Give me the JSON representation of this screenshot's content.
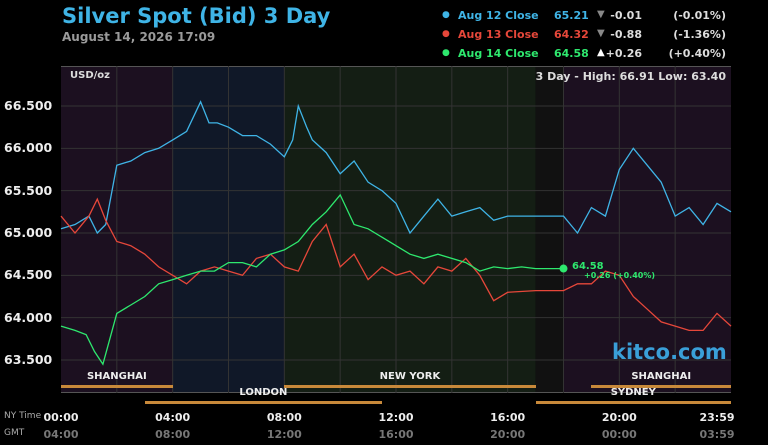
{
  "header": {
    "title": "Silver Spot (Bid) 3 Day",
    "timestamp": "August 14, 2026 17:09"
  },
  "legend": [
    {
      "label": "Aug 12 Close",
      "price": "65.21",
      "arrow": "▼",
      "change": "-0.01",
      "percent": "(-0.01%)",
      "color": "#3fb4e6",
      "arrow_color": "#888888"
    },
    {
      "label": "Aug 13 Close",
      "price": "64.32",
      "arrow": "▼",
      "change": "-0.88",
      "percent": "(-1.36%)",
      "color": "#e6473a",
      "arrow_color": "#888888"
    },
    {
      "label": "Aug 14 Close",
      "price": "64.58",
      "arrow": "▲",
      "change": "+0.26",
      "percent": "(+0.40%)",
      "color": "#2ee86e",
      "arrow_color": "#ffffff"
    }
  ],
  "plot": {
    "unit_label": "USD/oz",
    "high_low": "3 Day - High: 66.91   Low: 63.40",
    "watermark": "kitco.com",
    "last_value": "64.58",
    "last_change": "+0.26 (+0.40%)"
  },
  "markets": [
    {
      "name": "SHANGHAI",
      "start": 0,
      "end": 4,
      "row": 1
    },
    {
      "name": "NEW YORK",
      "start": 8,
      "end": 17,
      "row": 1
    },
    {
      "name": "SHANGHAI",
      "start": 19,
      "end": 24,
      "row": 1
    },
    {
      "name": "LONDON",
      "start": 3,
      "end": 11.5,
      "row": 2
    },
    {
      "name": "SYDNEY",
      "start": 17,
      "end": 24,
      "row": 2
    }
  ],
  "time_axis": {
    "ny_label": "NY Time",
    "gmt_label": "GMT",
    "ny": [
      "00:00",
      "04:00",
      "08:00",
      "12:00",
      "16:00",
      "20:00",
      "23:59"
    ],
    "gmt": [
      "04:00",
      "08:00",
      "12:00",
      "16:00",
      "20:00",
      "00:00",
      "03:59"
    ]
  },
  "chart_data": {
    "type": "line",
    "title": "Silver Spot (Bid) 3 Day",
    "xlabel": "NY Time",
    "ylabel": "USD/oz",
    "xlim": [
      0,
      24
    ],
    "ylim": [
      63.2,
      67.0
    ],
    "yticks": [
      "66.500",
      "66.000",
      "65.500",
      "65.000",
      "64.500",
      "64.000",
      "63.500"
    ],
    "ytick_values": [
      66.5,
      66.0,
      65.5,
      65.0,
      64.5,
      64.0,
      63.5
    ],
    "grid": true,
    "series": [
      {
        "name": "Aug 12 Close",
        "color": "#3fb4e6",
        "x": [
          0,
          0.5,
          1,
          1.3,
          1.6,
          2,
          2.5,
          3,
          3.5,
          4,
          4.5,
          5,
          5.3,
          5.6,
          6,
          6.5,
          7,
          7.5,
          8,
          8.3,
          8.5,
          8.8,
          9,
          9.5,
          10,
          10.5,
          11,
          11.5,
          12,
          12.5,
          13,
          13.5,
          14,
          14.5,
          15,
          15.5,
          16,
          17,
          18,
          18.5,
          19,
          19.5,
          20,
          20.5,
          21,
          21.5,
          22,
          22.5,
          23,
          23.5,
          24
        ],
        "y": [
          65.05,
          65.1,
          65.2,
          65.0,
          65.1,
          65.8,
          65.85,
          65.95,
          66.0,
          66.1,
          66.2,
          66.55,
          66.3,
          66.3,
          66.25,
          66.15,
          66.15,
          66.05,
          65.9,
          66.1,
          66.5,
          66.25,
          66.1,
          65.95,
          65.7,
          65.85,
          65.6,
          65.5,
          65.35,
          65.0,
          65.2,
          65.4,
          65.2,
          65.25,
          65.3,
          65.15,
          65.2,
          65.2,
          65.2,
          65.0,
          65.3,
          65.2,
          65.75,
          66.0,
          65.8,
          65.6,
          65.2,
          65.3,
          65.1,
          65.35,
          65.25
        ]
      },
      {
        "name": "Aug 13 Close",
        "color": "#e6473a",
        "x": [
          0,
          0.5,
          1,
          1.3,
          1.6,
          2,
          2.5,
          3,
          3.5,
          4,
          4.5,
          5,
          5.5,
          6,
          6.5,
          7,
          7.5,
          8,
          8.5,
          9,
          9.5,
          10,
          10.5,
          11,
          11.5,
          12,
          12.5,
          13,
          13.5,
          14,
          14.5,
          15,
          15.5,
          16,
          17,
          18,
          18.5,
          19,
          19.5,
          20,
          20.5,
          21,
          21.5,
          22,
          22.5,
          23,
          23.5,
          24
        ],
        "y": [
          65.2,
          65.0,
          65.2,
          65.4,
          65.15,
          64.9,
          64.85,
          64.75,
          64.6,
          64.5,
          64.4,
          64.55,
          64.6,
          64.55,
          64.5,
          64.7,
          64.75,
          64.6,
          64.55,
          64.9,
          65.1,
          64.6,
          64.75,
          64.45,
          64.6,
          64.5,
          64.55,
          64.4,
          64.6,
          64.55,
          64.7,
          64.5,
          64.2,
          64.3,
          64.32,
          64.32,
          64.4,
          64.4,
          64.55,
          64.5,
          64.25,
          64.1,
          63.95,
          63.9,
          63.85,
          63.85,
          64.05,
          63.9
        ]
      },
      {
        "name": "Aug 14 Close",
        "color": "#2ee86e",
        "x": [
          0,
          0.5,
          0.9,
          1.2,
          1.5,
          2,
          2.5,
          3,
          3.5,
          4,
          4.5,
          5,
          5.5,
          6,
          6.5,
          7,
          7.5,
          8,
          8.5,
          9,
          9.5,
          10,
          10.5,
          11,
          11.5,
          12,
          12.5,
          13,
          13.5,
          14,
          14.5,
          15,
          15.5,
          16,
          16.5,
          17,
          18
        ],
        "y": [
          63.9,
          63.85,
          63.8,
          63.6,
          63.45,
          64.05,
          64.15,
          64.25,
          64.4,
          64.45,
          64.5,
          64.55,
          64.55,
          64.65,
          64.65,
          64.6,
          64.75,
          64.8,
          64.9,
          65.1,
          65.25,
          65.45,
          65.1,
          65.05,
          64.95,
          64.85,
          64.75,
          64.7,
          64.75,
          64.7,
          64.65,
          64.55,
          64.6,
          64.58,
          64.6,
          64.58,
          64.58
        ]
      }
    ]
  }
}
